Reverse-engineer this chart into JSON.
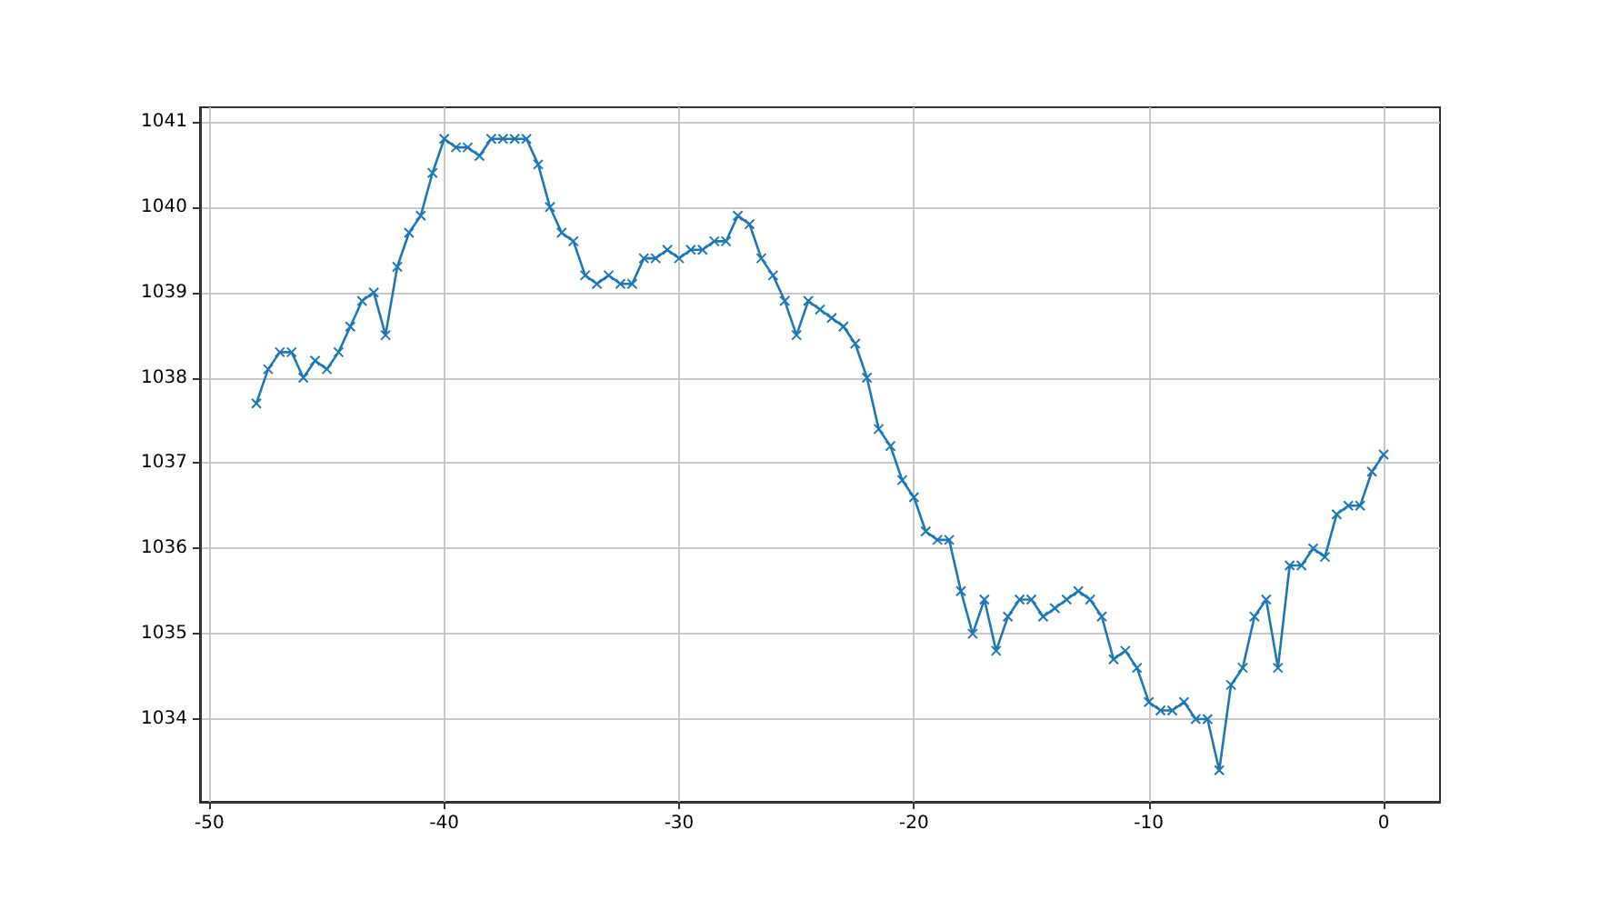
{
  "chart_data": {
    "type": "line",
    "color": "#1f77b4",
    "marker": "cross",
    "line_style": "solid",
    "grid": true,
    "x": [
      -48,
      -47.5,
      -47,
      -46.5,
      -46,
      -45.5,
      -45,
      -44.5,
      -44,
      -43.5,
      -43,
      -42.5,
      -42,
      -41.5,
      -41,
      -40.5,
      -40,
      -39.5,
      -39,
      -38.5,
      -38,
      -37.5,
      -37,
      -36.5,
      -36,
      -35.5,
      -35,
      -34.5,
      -34,
      -33.5,
      -33,
      -32.5,
      -32,
      -31.5,
      -31,
      -30.5,
      -30,
      -29.5,
      -29,
      -28.5,
      -28,
      -27.5,
      -27,
      -26.5,
      -26,
      -25.5,
      -25,
      -24.5,
      -24,
      -23.5,
      -23,
      -22.5,
      -22,
      -21.5,
      -21,
      -20.5,
      -20,
      -19.5,
      -19,
      -18.5,
      -18,
      -17.5,
      -17,
      -16.5,
      -16,
      -15.5,
      -15,
      -14.5,
      -14,
      -13.5,
      -13,
      -12.5,
      -12,
      -11.5,
      -11,
      -10.5,
      -10,
      -9.5,
      -9,
      -8.5,
      -8,
      -7.5,
      -7,
      -6.5,
      -6,
      -5.5,
      -5,
      -4.5,
      -4,
      -3.5,
      -3,
      -2.5,
      -2,
      -1.5,
      -1,
      -0.5,
      0
    ],
    "values": [
      1037.7,
      1038.1,
      1038.3,
      1038.3,
      1038.0,
      1038.2,
      1038.1,
      1038.3,
      1038.6,
      1038.9,
      1039.0,
      1038.5,
      1039.3,
      1039.7,
      1039.9,
      1040.4,
      1040.8,
      1040.7,
      1040.7,
      1040.6,
      1040.8,
      1040.8,
      1040.8,
      1040.8,
      1040.5,
      1040.0,
      1039.7,
      1039.6,
      1039.2,
      1039.1,
      1039.2,
      1039.1,
      1039.1,
      1039.4,
      1039.4,
      1039.5,
      1039.4,
      1039.5,
      1039.5,
      1039.6,
      1039.6,
      1039.9,
      1039.8,
      1039.4,
      1039.2,
      1038.9,
      1038.5,
      1038.9,
      1038.8,
      1038.7,
      1038.6,
      1038.4,
      1038.0,
      1037.4,
      1037.2,
      1036.8,
      1036.6,
      1036.2,
      1036.1,
      1036.1,
      1035.5,
      1035.0,
      1035.4,
      1034.8,
      1035.2,
      1035.4,
      1035.4,
      1035.2,
      1035.3,
      1035.4,
      1035.5,
      1035.4,
      1035.2,
      1034.7,
      1034.8,
      1034.6,
      1034.2,
      1034.1,
      1034.1,
      1034.2,
      1034.0,
      1034.0,
      1033.4,
      1034.4,
      1034.6,
      1035.2,
      1035.4,
      1034.6,
      1035.8,
      1035.8,
      1036.0,
      1035.9,
      1036.4,
      1036.5,
      1036.5,
      1036.9,
      1037.1
    ],
    "xlim": [
      -50.4,
      2.4
    ],
    "xticks": [
      -50,
      -40,
      -30,
      -20,
      -10,
      0
    ],
    "ylim": [
      1033.03,
      1041.17
    ],
    "yticks": [
      1034,
      1035,
      1036,
      1037,
      1038,
      1039,
      1040,
      1041
    ]
  }
}
